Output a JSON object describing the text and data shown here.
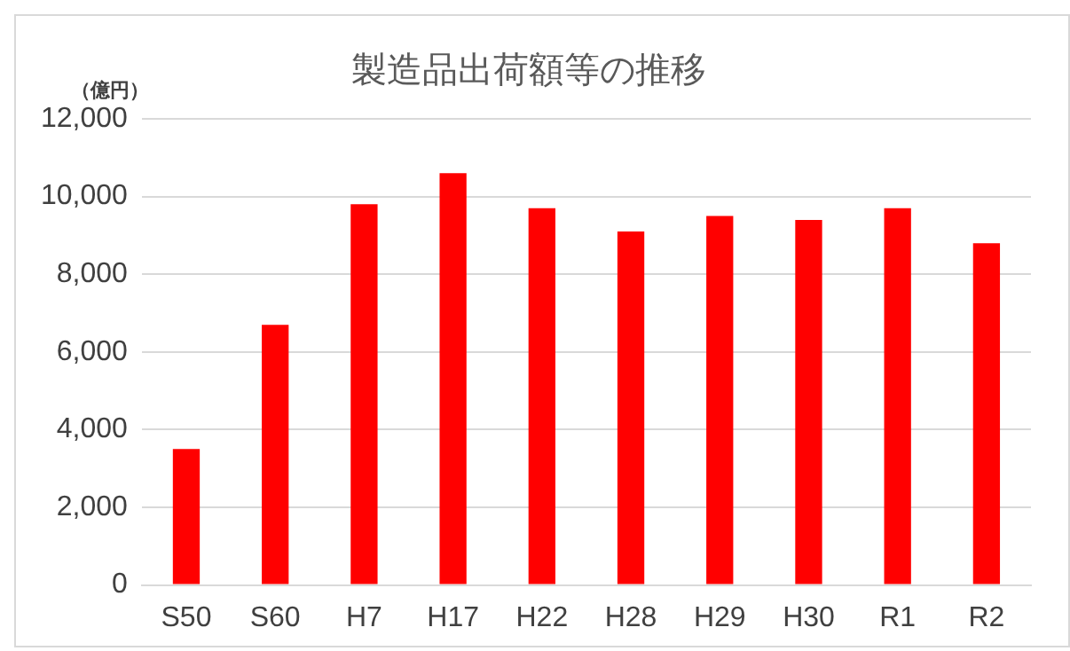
{
  "chart_data": {
    "type": "bar",
    "title": "製造品出荷額等の推移",
    "ylabel": "（億円）",
    "categories": [
      "S50",
      "S60",
      "H7",
      "H17",
      "H22",
      "H28",
      "H29",
      "H30",
      "R1",
      "R2"
    ],
    "values": [
      3500,
      6700,
      9800,
      10600,
      9700,
      9100,
      9500,
      9400,
      9700,
      8800
    ],
    "color": "#ff0000",
    "ylim": [
      0,
      12000
    ],
    "yticks": [
      0,
      {
        "value": 2000,
        "label": "2,000"
      },
      {
        "value": 4000,
        "label": "4,000"
      },
      {
        "value": 6000,
        "label": "6,000"
      },
      {
        "value": 8000,
        "label": "8,000"
      },
      {
        "value": 10000,
        "label": "10,000"
      },
      {
        "value": 12000,
        "label": "12,000"
      }
    ],
    "grid": "y",
    "legend": false
  }
}
